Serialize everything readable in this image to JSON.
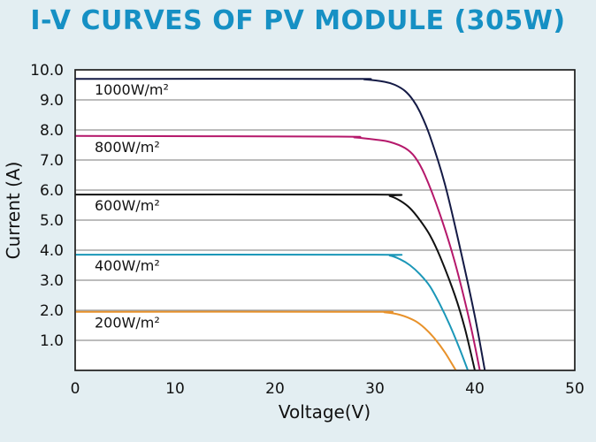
{
  "chart_data": {
    "type": "line",
    "title": "I-V CURVES OF PV MODULE (305W)",
    "xlabel": "Voltage(V)",
    "ylabel": "Current (A)",
    "xlim": [
      0,
      50
    ],
    "ylim": [
      0,
      10
    ],
    "xticks": [
      "0",
      "10",
      "20",
      "30",
      "40",
      "50"
    ],
    "yticks": [
      "1.0",
      "2.0",
      "3.0",
      "4.0",
      "5.0",
      "6.0",
      "7.0",
      "8.0",
      "9.0",
      "10.0"
    ],
    "grid": "horizontal",
    "series": [
      {
        "name": "1000W/m²",
        "color": "#141a45",
        "x": [
          0,
          27,
          29,
          31,
          32,
          33,
          33.8,
          34.5,
          35.5,
          37,
          38.5,
          40,
          41
        ],
        "y": [
          9.7,
          9.7,
          9.68,
          9.6,
          9.5,
          9.3,
          9.0,
          8.6,
          7.8,
          6.2,
          4.1,
          1.8,
          0
        ]
      },
      {
        "name": "800W/m²",
        "color": "#b5186b",
        "x": [
          0,
          26,
          28,
          30,
          31.5,
          33,
          34,
          35,
          36.5,
          38,
          39.5,
          40.5
        ],
        "y": [
          7.8,
          7.78,
          7.75,
          7.68,
          7.6,
          7.4,
          7.1,
          6.5,
          5.2,
          3.6,
          1.6,
          0
        ]
      },
      {
        "name": "600W/m²",
        "color": "#111111",
        "x": [
          0,
          30,
          31.5,
          32.5,
          33.5,
          34.5,
          35.5,
          36.5,
          38,
          39,
          40
        ],
        "y": [
          5.85,
          5.85,
          5.8,
          5.65,
          5.4,
          5.0,
          4.5,
          3.8,
          2.5,
          1.4,
          0
        ]
      },
      {
        "name": "400W/m²",
        "color": "#1b97b8",
        "x": [
          0,
          30,
          31.5,
          32.5,
          33.5,
          34.5,
          35.5,
          36.5,
          37.5,
          38.5,
          39.3
        ],
        "y": [
          3.85,
          3.85,
          3.82,
          3.7,
          3.5,
          3.2,
          2.8,
          2.2,
          1.5,
          0.7,
          0
        ]
      },
      {
        "name": "200W/m²",
        "color": "#e8922b",
        "x": [
          0,
          29,
          31,
          32.5,
          34,
          35,
          36,
          37,
          38.1
        ],
        "y": [
          1.95,
          1.95,
          1.93,
          1.85,
          1.65,
          1.4,
          1.05,
          0.6,
          0
        ]
      }
    ]
  }
}
